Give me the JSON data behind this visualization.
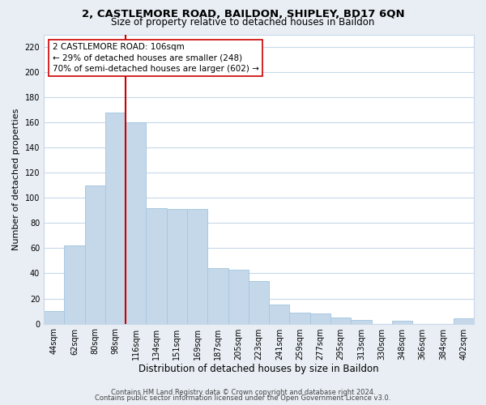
{
  "title1": "2, CASTLEMORE ROAD, BAILDON, SHIPLEY, BD17 6QN",
  "title2": "Size of property relative to detached houses in Baildon",
  "xlabel": "Distribution of detached houses by size in Baildon",
  "ylabel": "Number of detached properties",
  "bar_labels": [
    "44sqm",
    "62sqm",
    "80sqm",
    "98sqm",
    "116sqm",
    "134sqm",
    "151sqm",
    "169sqm",
    "187sqm",
    "205sqm",
    "223sqm",
    "241sqm",
    "259sqm",
    "277sqm",
    "295sqm",
    "313sqm",
    "330sqm",
    "348sqm",
    "366sqm",
    "384sqm",
    "402sqm"
  ],
  "bar_values": [
    10,
    62,
    110,
    168,
    160,
    92,
    91,
    91,
    44,
    43,
    34,
    15,
    9,
    8,
    5,
    3,
    0,
    2,
    0,
    0,
    4
  ],
  "bar_color": "#c5d8ea",
  "bar_edge_color": "#a8c8e0",
  "vline_x": 3.5,
  "vline_color": "#cc0000",
  "ylim": [
    0,
    230
  ],
  "yticks": [
    0,
    20,
    40,
    60,
    80,
    100,
    120,
    140,
    160,
    180,
    200,
    220
  ],
  "annotation_line1": "2 CASTLEMORE ROAD: 106sqm",
  "annotation_line2": "← 29% of detached houses are smaller (248)",
  "annotation_line3": "70% of semi-detached houses are larger (602) →",
  "footer1": "Contains HM Land Registry data © Crown copyright and database right 2024.",
  "footer2": "Contains public sector information licensed under the Open Government Licence v3.0.",
  "bg_color": "#e8eef4",
  "plot_bg_color": "#ffffff",
  "grid_color": "#c8d8e8",
  "title1_fontsize": 9.5,
  "title2_fontsize": 8.5,
  "ylabel_fontsize": 8,
  "xlabel_fontsize": 8.5,
  "tick_fontsize": 7,
  "ann_fontsize": 7.5,
  "footer_fontsize": 6
}
